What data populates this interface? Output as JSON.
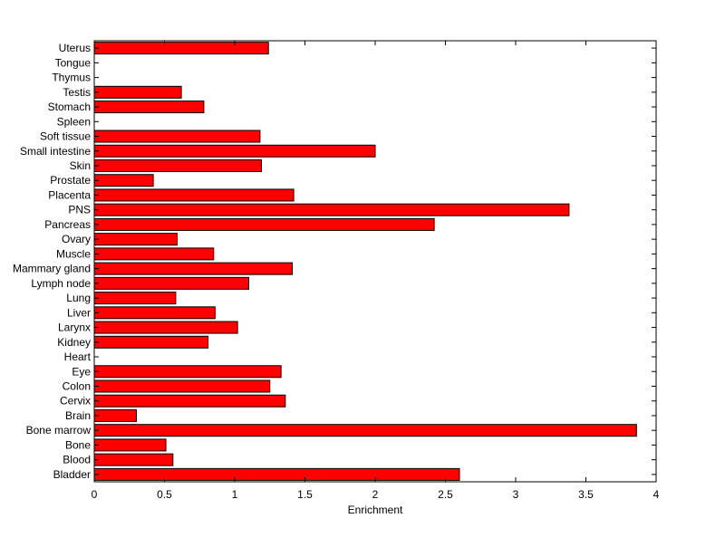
{
  "chart_data": {
    "type": "bar",
    "orientation": "horizontal",
    "title": "",
    "xlabel": "Enrichment",
    "ylabel": "",
    "xlim": [
      0,
      4
    ],
    "xticks": [
      "0",
      "0.5",
      "1",
      "1.5",
      "2",
      "2.5",
      "3",
      "3.5",
      "4"
    ],
    "grid": false,
    "bar_color": "#ff0000",
    "categories": [
      "Bladder",
      "Blood",
      "Bone",
      "Bone marrow",
      "Brain",
      "Cervix",
      "Colon",
      "Eye",
      "Heart",
      "Kidney",
      "Larynx",
      "Liver",
      "Lung",
      "Lymph node",
      "Mammary gland",
      "Muscle",
      "Ovary",
      "Pancreas",
      "PNS",
      "Placenta",
      "Prostate",
      "Skin",
      "Small intestine",
      "Soft tissue",
      "Spleen",
      "Stomach",
      "Testis",
      "Thymus",
      "Tongue",
      "Uterus"
    ],
    "values": [
      2.6,
      0.56,
      0.51,
      3.86,
      0.3,
      1.36,
      1.25,
      1.33,
      0,
      0.81,
      1.02,
      0.86,
      0.58,
      1.1,
      1.41,
      0.85,
      0.59,
      2.42,
      3.38,
      1.42,
      0.42,
      1.19,
      2.0,
      1.18,
      0,
      0.78,
      0.62,
      0,
      0,
      1.24
    ]
  }
}
